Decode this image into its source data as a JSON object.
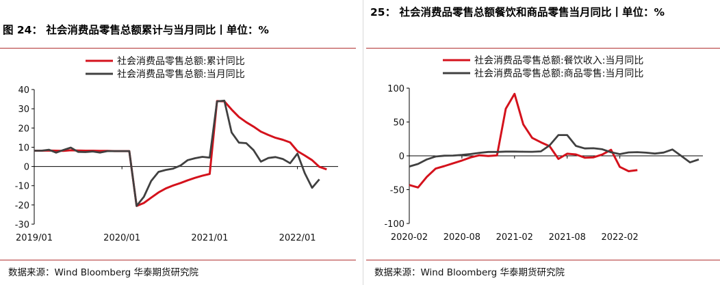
{
  "panels": [
    {
      "title": "图 24：  社会消费品零售总额累计与当月同比丨单位：%",
      "source": "数据来源：Wind Bloomberg 华泰期货研究院"
    },
    {
      "title": "25：  社会消费品零售总额餐饮和商品零售当月同比丨单位：%",
      "source": "数据来源：Wind Bloomberg 华泰期货研究院"
    }
  ],
  "colors": {
    "red": "#d4121c",
    "gray": "#404040",
    "rule": "#b03030"
  },
  "chart_data": [
    {
      "type": "line",
      "ylim": [
        -30,
        40
      ],
      "yticks": [
        -30,
        -20,
        -10,
        0,
        10,
        20,
        30,
        40
      ],
      "x_start": "2019/01",
      "x_end": "2022/06",
      "xtick_labels": [
        "2019/01",
        "2020/01",
        "2021/01",
        "2022/01"
      ],
      "xtick_index": [
        0,
        12,
        24,
        36
      ],
      "legend_position": "top",
      "series": [
        {
          "name": "社会消费品零售总额:累计同比",
          "color": "#d4121c",
          "values": [
            8.2,
            8.2,
            8.3,
            8.2,
            8.1,
            8.4,
            8.3,
            8.2,
            8.2,
            8.1,
            8.1,
            8.0,
            8.0,
            -20.5,
            -19.0,
            -16.2,
            -13.5,
            -11.4,
            -9.9,
            -8.6,
            -7.2,
            -5.9,
            -4.8,
            -3.9,
            34.0,
            33.9,
            29.6,
            25.7,
            23.0,
            20.7,
            18.1,
            16.4,
            14.9,
            13.9,
            12.5,
            8.0,
            5.7,
            3.3,
            -0.2,
            -1.5
          ],
          "x_index": [
            0,
            1,
            2,
            3,
            4,
            5,
            6,
            7,
            8,
            9,
            10,
            11,
            13,
            14,
            15,
            16,
            17,
            18,
            19,
            20,
            21,
            22,
            23,
            24,
            25,
            26,
            27,
            28,
            29,
            30,
            31,
            32,
            33,
            34,
            35,
            36,
            37,
            38,
            39,
            40
          ]
        },
        {
          "name": "社会消费品零售总额:当月同比",
          "color": "#404040",
          "values": [
            8.2,
            8.2,
            8.7,
            7.2,
            8.6,
            9.8,
            7.6,
            7.5,
            7.8,
            7.2,
            8.0,
            8.0,
            8.0,
            -20.5,
            -15.8,
            -7.5,
            -2.8,
            -1.8,
            -1.1,
            0.5,
            3.3,
            4.3,
            5.0,
            4.6,
            33.8,
            34.2,
            17.7,
            12.4,
            12.1,
            8.5,
            2.5,
            4.4,
            4.9,
            3.9,
            1.7,
            6.7,
            -3.5,
            -11.1,
            -6.7
          ],
          "x_index": [
            0,
            1,
            2,
            3,
            4,
            5,
            6,
            7,
            8,
            9,
            10,
            11,
            13,
            14,
            15,
            16,
            17,
            18,
            19,
            20,
            21,
            22,
            23,
            24,
            25,
            26,
            27,
            28,
            29,
            30,
            31,
            32,
            33,
            34,
            35,
            36,
            37,
            38,
            39
          ]
        }
      ]
    },
    {
      "type": "line",
      "ylim": [
        -100,
        100
      ],
      "yticks": [
        -100,
        -50,
        0,
        50,
        100
      ],
      "x_start": "2020-02",
      "x_end": "2022-05",
      "xtick_labels": [
        "2020-02",
        "2020-08",
        "2021-02",
        "2021-08",
        "2022-02"
      ],
      "xtick_index": [
        0,
        6,
        12,
        18,
        24
      ],
      "legend_position": "top",
      "series": [
        {
          "name": "社会消费品零售总额:餐饮收入:当月同比",
          "color": "#d4121c",
          "values": [
            -43.1,
            -46.8,
            -31.1,
            -18.9,
            -15.2,
            -11.0,
            -7.0,
            -2.3,
            0.8,
            -0.3,
            0.6,
            69.6,
            91.6,
            46.4,
            26.6,
            20.0,
            14.1,
            -4.5,
            3.1,
            2.0,
            -2.7,
            -2.2,
            1.9,
            8.9,
            -16.4,
            -22.7,
            -21.1
          ],
          "x_index": [
            0,
            1,
            2,
            3,
            4,
            5,
            6,
            7,
            8,
            9,
            10,
            11,
            12,
            13,
            14,
            15,
            16,
            17,
            18,
            19,
            20,
            21,
            22,
            23,
            24,
            25,
            26
          ]
        },
        {
          "name": "社会消费品零售总额:商品零售:当月同比",
          "color": "#404040",
          "values": [
            -15.8,
            -12.0,
            -5.4,
            -1.0,
            0.2,
            0.4,
            1.3,
            2.6,
            4.3,
            5.8,
            5.8,
            6.3,
            6.3,
            6.1,
            6.0,
            6.6,
            15.6,
            30.7,
            30.7,
            14.6,
            10.9,
            11.2,
            9.7,
            5.3,
            2.5,
            5.1,
            5.5,
            4.6,
            3.3,
            4.8,
            9.4,
            -0.1,
            -9.7,
            -5.4
          ],
          "x_index": [
            0,
            1,
            2,
            3,
            4,
            5,
            6,
            7,
            8,
            9,
            10,
            11,
            12,
            13,
            14,
            15,
            16,
            17,
            18,
            19,
            20,
            21,
            22,
            23,
            24,
            25,
            26,
            27,
            28,
            29,
            30,
            31,
            32,
            33
          ]
        }
      ]
    }
  ]
}
